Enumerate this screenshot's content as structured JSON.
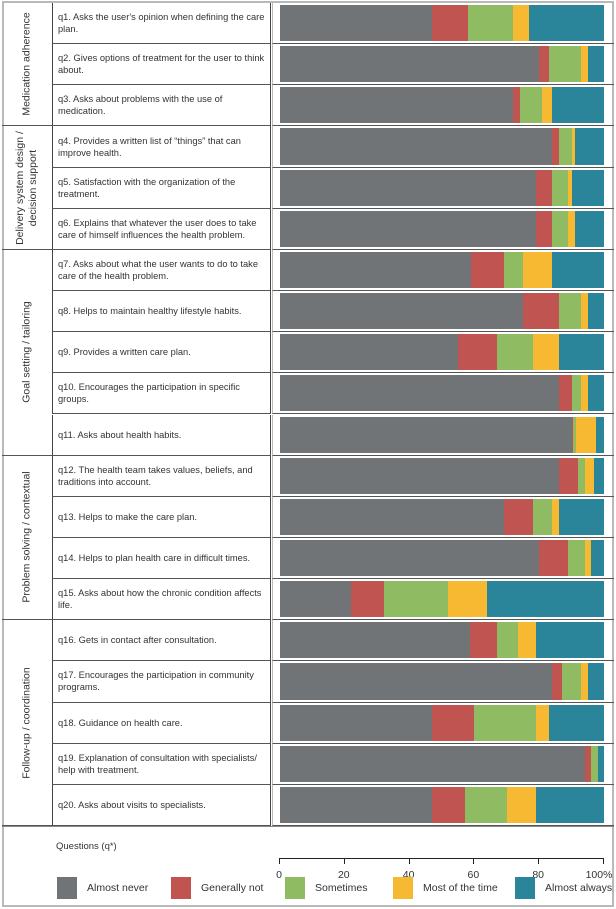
{
  "chart_data": {
    "type": "bar",
    "orientation": "horizontal-stacked-100",
    "title": "",
    "xlabel": "",
    "ylabel": "Questions (q*)",
    "xlim": [
      0,
      100
    ],
    "x_ticks": [
      "0",
      "20",
      "40",
      "60",
      "80",
      "100%"
    ],
    "x_tick_values": [
      0,
      20,
      40,
      60,
      80,
      100
    ],
    "legend_position": "bottom",
    "series_names": [
      "Almost never",
      "Generally not",
      "Sometimes",
      "Most of the time",
      "Almost always"
    ],
    "colors": [
      "#717476",
      "#bf5450",
      "#8fbb62",
      "#f8b932",
      "#2a859b"
    ],
    "groups": [
      {
        "label": "Medication adherence",
        "questions": [
          0,
          1,
          2
        ]
      },
      {
        "label": "Delivery system design / decision support",
        "label_lines": [
          "Delivery system design /",
          "decision support"
        ],
        "questions": [
          3,
          4,
          5
        ]
      },
      {
        "label": "Goal setting / tailoring",
        "questions": [
          6,
          7,
          8,
          9,
          10
        ]
      },
      {
        "label": "Problem solving / contextual",
        "questions": [
          11,
          12,
          13,
          14
        ]
      },
      {
        "label": "Follow-up / coordination",
        "questions": [
          15,
          16,
          17,
          18,
          19
        ]
      }
    ],
    "categories": [
      "q1. Asks the user's opinion when defining the care plan.",
      "q2. Gives options of treatment for the user to think about.",
      "q3. Asks about problems with the use of medication.",
      "q4. Provides a written list of “things” that can improve health.",
      "q5. Satisfaction with the organization of the treatment.",
      "q6. Explains that whatever the user does to take care of himself influences the health problem.",
      "q7. Asks about what the user wants to do to take care of the health problem.",
      "q8. Helps to maintain healthy lifestyle habits.",
      "q9. Provides a written care plan.",
      "q10. Encourages the participation in specific groups.",
      "q11. Asks about health habits.",
      "q12. The health team takes values, beliefs, and traditions into account.",
      "q13. Helps to make the care plan.",
      "q14. Helps to plan health care in difficult times.",
      "q15. Asks about how the chronic condition affects life.",
      "q16. Gets in contact after consultation.",
      "q17. Encourages the participation in community programs.",
      "q18. Guidance on health care.",
      "q19. Explanation of consultation with specialists/ help with treatment.",
      "q20. Asks about visits to specialists."
    ],
    "series": [
      {
        "name": "Almost never",
        "values": [
          47,
          80,
          72,
          84,
          79,
          79,
          59,
          75,
          55,
          86,
          90,
          86,
          69,
          80,
          22,
          58.5,
          84,
          47,
          94,
          47
        ]
      },
      {
        "name": "Generally not",
        "values": [
          11,
          3,
          2,
          2,
          5,
          5,
          10,
          11,
          12,
          4,
          0.5,
          6,
          9,
          9,
          10,
          8.5,
          3,
          13,
          2,
          10
        ]
      },
      {
        "name": "Sometimes",
        "values": [
          14,
          10,
          7,
          4,
          5,
          5,
          6,
          7,
          11,
          3,
          1,
          2,
          6,
          5,
          20,
          6.5,
          6,
          19,
          2,
          13
        ]
      },
      {
        "name": "Most of the time",
        "values": [
          5,
          2,
          3,
          1,
          1,
          2,
          9,
          2,
          8,
          2,
          6,
          3,
          2,
          2,
          12,
          5.5,
          2,
          4,
          0,
          9
        ]
      },
      {
        "name": "Almost always",
        "values": [
          23,
          5,
          16,
          9,
          10,
          9,
          16,
          5,
          14,
          5,
          2.5,
          3,
          14,
          4,
          36,
          21,
          5,
          17,
          2,
          21
        ]
      }
    ]
  }
}
